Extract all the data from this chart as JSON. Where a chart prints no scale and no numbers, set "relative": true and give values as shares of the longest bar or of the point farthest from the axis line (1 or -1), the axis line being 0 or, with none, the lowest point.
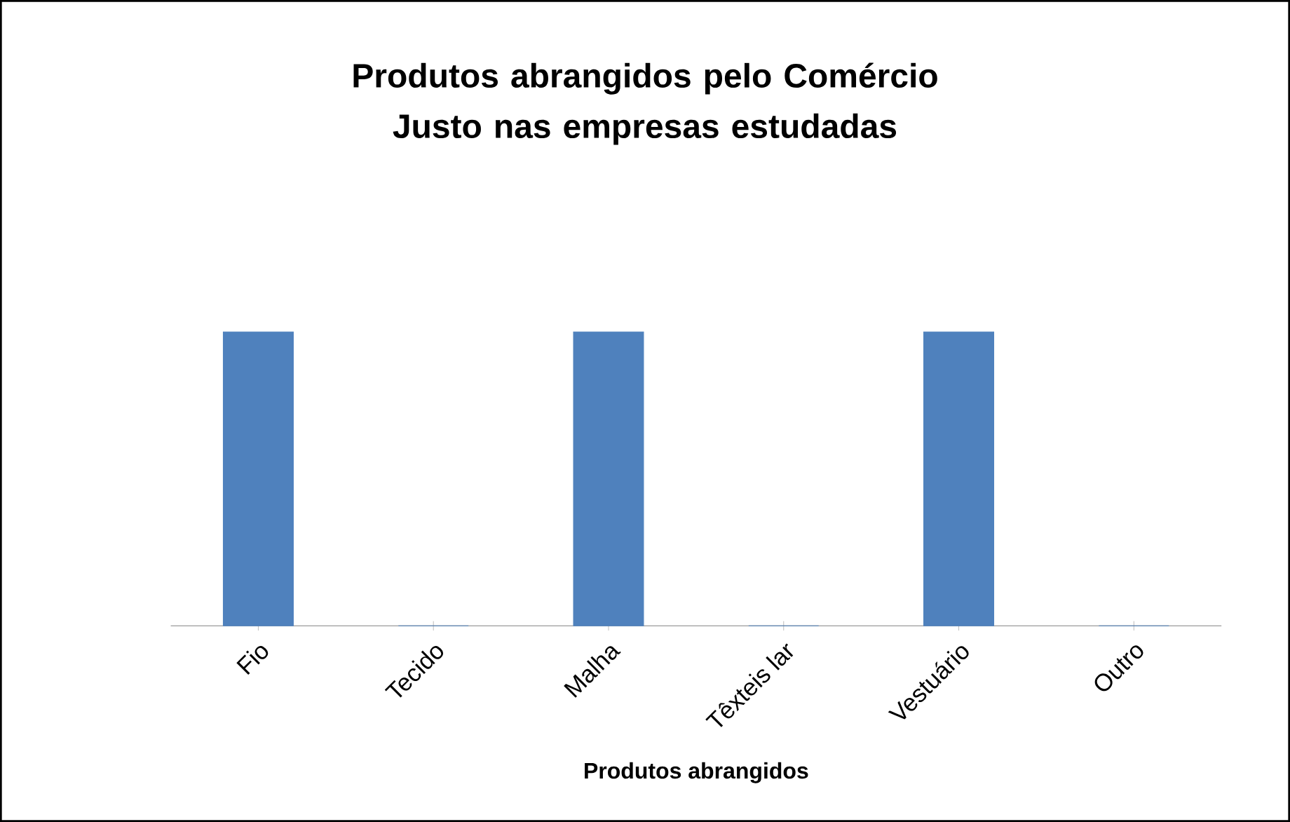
{
  "chart_data": {
    "type": "bar",
    "title": "Produtos abrangidos pelo Comércio Justo nas empresas estudadas",
    "xlabel": "Produtos abrangidos",
    "categories": [
      "Fio",
      "Tecido",
      "Malha",
      "Têxteis lar",
      "Vestuário",
      "Outro"
    ],
    "values": [
      1,
      0,
      1,
      0,
      1,
      0
    ],
    "color": "#4f81bd",
    "relative": true
  }
}
